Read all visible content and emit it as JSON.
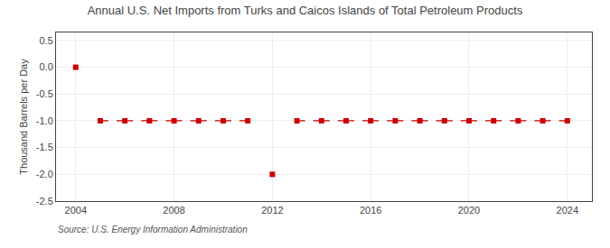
{
  "chart_data": {
    "type": "scatter",
    "title": "Annual U.S. Net Imports from Turks and Caicos Islands of Total Petroleum Products",
    "ylabel": "Thousand Barrels per Day",
    "annotations": [
      "Source: U.S. Energy Information Administration"
    ],
    "x": [
      2004,
      2005,
      2006,
      2007,
      2008,
      2009,
      2010,
      2011,
      2012,
      2013,
      2014,
      2015,
      2016,
      2017,
      2018,
      2019,
      2020,
      2021,
      2022,
      2023,
      2024
    ],
    "values": [
      0.0,
      -1.0,
      -1.0,
      -1.0,
      -1.0,
      -1.0,
      -1.0,
      -1.0,
      -2.0,
      -1.0,
      -1.0,
      -1.0,
      -1.0,
      -1.0,
      -1.0,
      -1.0,
      -1.0,
      -1.0,
      -1.0,
      -1.0,
      -1.0
    ],
    "color": "#cc0000",
    "marker": "square",
    "line_style": "dashed",
    "xlim": [
      2003.2,
      2025.0
    ],
    "xticks": [
      2004,
      2008,
      2012,
      2016,
      2020,
      2024
    ],
    "ylim": [
      -2.5,
      0.65
    ],
    "yticks": [
      0.5,
      {
        "value": 0,
        "label": "0.0"
      },
      -0.5,
      {
        "value": -1,
        "label": "-1.0"
      },
      -1.5,
      {
        "value": -2,
        "label": "-2.0"
      },
      -2.5
    ],
    "grid": true
  }
}
